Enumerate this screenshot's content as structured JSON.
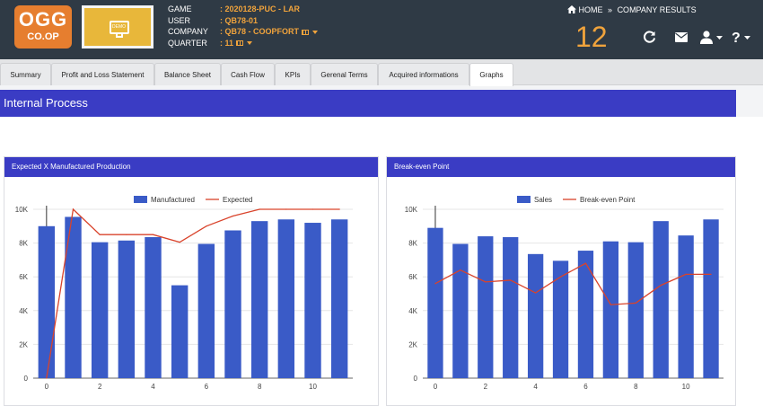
{
  "header": {
    "logo_line1": "OGG",
    "logo_line2": "CO.OP",
    "demo_label": "DEMO",
    "game_key": "GAME",
    "game_value": ": 2020128-PUC - LAR",
    "user_key": "USER",
    "user_value": ": QB78-01",
    "company_key": "COMPANY",
    "company_value": ": QB78 - COOPFORT",
    "quarter_key": "QUARTER",
    "quarter_value": ": 11",
    "nav_home": "HOME",
    "nav_sep": "»",
    "nav_current": "COMPANY RESULTS",
    "big_number": "12",
    "icons": [
      "refresh-icon",
      "mail-icon",
      "user-icon",
      "help-icon"
    ]
  },
  "tabs": [
    {
      "label": "Summary"
    },
    {
      "label": "Profit and Loss Statement"
    },
    {
      "label": "Balance Sheet"
    },
    {
      "label": "Cash Flow"
    },
    {
      "label": "KPIs"
    },
    {
      "label": "Gerenal Terms"
    },
    {
      "label": "Acquired informations"
    },
    {
      "label": "Graphs",
      "active": true
    }
  ],
  "section_title": "Internal Process",
  "colors": {
    "accent": "#3a3cc4",
    "bar": "#3a5bc7",
    "line": "#d9432b",
    "orange": "#f0a33c"
  },
  "panels": [
    {
      "title": "Expected X Manufactured Production",
      "chart_data": {
        "type": "bar",
        "x": [
          0,
          1,
          2,
          3,
          4,
          5,
          6,
          7,
          8,
          9,
          10,
          11
        ],
        "series": [
          {
            "name": "Manufactured",
            "type": "bar",
            "values": [
              9000,
              9550,
              8050,
              8150,
              8350,
              5500,
              7950,
              8750,
              9300,
              9400,
              9200,
              9400
            ]
          },
          {
            "name": "Expected",
            "type": "line",
            "values": [
              0,
              10000,
              8500,
              8500,
              8500,
              8050,
              9000,
              9600,
              10000,
              10000,
              10000,
              10000
            ]
          }
        ],
        "ylim": [
          0,
          10000
        ],
        "yticks": [
          0,
          2000,
          4000,
          6000,
          8000,
          10000
        ],
        "ytick_labels": [
          "0",
          "2K",
          "4K",
          "6K",
          "8K",
          "10K"
        ],
        "xticks": [
          0,
          2,
          4,
          6,
          8,
          10
        ],
        "xtick_labels": [
          "0",
          "2",
          "4",
          "6",
          "8",
          "10"
        ],
        "legend": "top"
      }
    },
    {
      "title": "Break-even Point",
      "chart_data": {
        "type": "bar",
        "x": [
          0,
          1,
          2,
          3,
          4,
          5,
          6,
          7,
          8,
          9,
          10,
          11
        ],
        "series": [
          {
            "name": "Sales",
            "type": "bar",
            "values": [
              8900,
              7950,
              8400,
              8350,
              7350,
              6950,
              7550,
              8100,
              8050,
              9300,
              8450,
              9400
            ]
          },
          {
            "name": "Break-even Point",
            "type": "line",
            "values": [
              5600,
              6400,
              5700,
              5800,
              5050,
              6000,
              6800,
              4350,
              4450,
              5500,
              6150,
              6150
            ]
          }
        ],
        "ylim": [
          0,
          10000
        ],
        "yticks": [
          0,
          2000,
          4000,
          6000,
          8000,
          10000
        ],
        "ytick_labels": [
          "0",
          "2K",
          "4K",
          "6K",
          "8K",
          "10K"
        ],
        "xticks": [
          0,
          2,
          4,
          6,
          8,
          10
        ],
        "xtick_labels": [
          "0",
          "2",
          "4",
          "6",
          "8",
          "10"
        ],
        "legend": "top"
      }
    }
  ]
}
